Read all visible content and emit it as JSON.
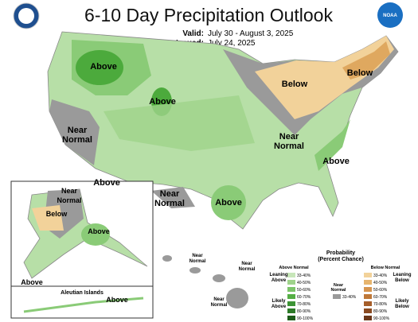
{
  "header": {
    "title": "6-10 Day Precipitation Outlook",
    "valid_label": "Valid:",
    "valid": "July 30 - August 3, 2025",
    "issued_label": "Issued:",
    "issued": "July 24, 2025",
    "noaa_logo": "NOAA"
  },
  "map_labels": [
    [
      "Above"
    ],
    [
      "Above"
    ],
    [
      "Below"
    ],
    [
      "Below"
    ],
    [
      "Near",
      "Normal"
    ],
    [
      "Near",
      "Normal"
    ],
    [
      "Above"
    ],
    [
      "Above"
    ],
    [
      "Near",
      "Normal"
    ],
    [
      "Above"
    ],
    [
      "Near",
      "Normal"
    ],
    [
      "Below"
    ],
    [
      "Above"
    ],
    [
      "Above"
    ],
    [
      "Above"
    ]
  ],
  "aleutian_title": "Aleutian Islands",
  "hawaii_labels": [
    [
      "Near",
      "Normal"
    ],
    [
      "Near",
      "Normal"
    ],
    [
      "Near",
      "Normal"
    ]
  ],
  "legend": {
    "title": [
      "Probability",
      "(Percent Chance)"
    ],
    "above_title": "Above Normal",
    "below_title": "Below Normal",
    "near_title": [
      "Near",
      "Normal"
    ],
    "leaning_above": [
      "Leaning",
      "Above"
    ],
    "likely_above": [
      "Likely",
      "Above"
    ],
    "leaning_below": [
      "Leaning",
      "Below"
    ],
    "likely_below": [
      "Likely",
      "Below"
    ],
    "bins": [
      "33-40%",
      "40-50%",
      "50-60%",
      "60-70%",
      "70-80%",
      "80-90%",
      "90-100%"
    ],
    "near_bin": "33-40%"
  }
}
